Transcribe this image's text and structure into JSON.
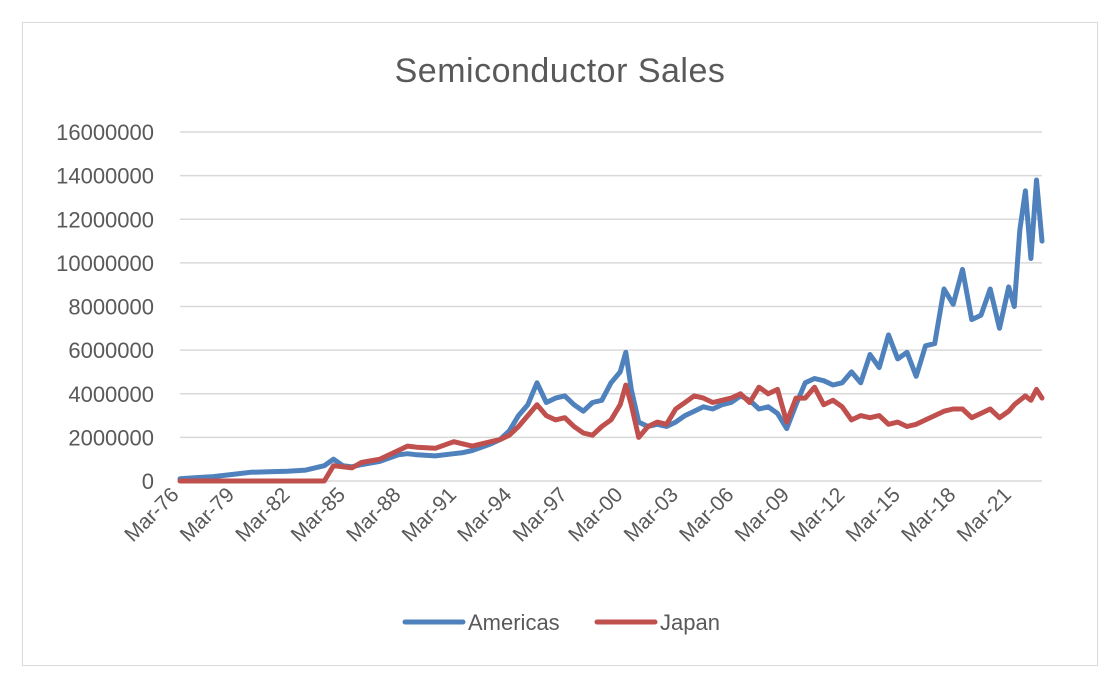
{
  "chart_data": {
    "type": "line",
    "title": "Semiconductor Sales",
    "xlabel": "",
    "ylabel": "",
    "ylim": [
      0,
      16000000
    ],
    "yticks": [
      "0",
      "2000000",
      "4000000",
      "6000000",
      "8000000",
      "10000000",
      "12000000",
      "14000000",
      "16000000"
    ],
    "xticks": [
      "Mar-76",
      "Mar-79",
      "Mar-82",
      "Mar-85",
      "Mar-88",
      "Mar-91",
      "Mar-94",
      "Mar-97",
      "Mar-00",
      "Mar-03",
      "Mar-06",
      "Mar-09",
      "Mar-12",
      "Mar-15",
      "Mar-18",
      "Mar-21"
    ],
    "grid": true,
    "legend_position": "bottom",
    "x": [
      1976.2,
      1977.0,
      1978.0,
      1979.0,
      1980.0,
      1981.0,
      1982.0,
      1983.0,
      1984.0,
      1984.5,
      1985.0,
      1985.5,
      1986.0,
      1987.0,
      1988.0,
      1988.5,
      1989.0,
      1990.0,
      1991.0,
      1991.5,
      1992.0,
      1993.0,
      1993.5,
      1994.0,
      1994.5,
      1995.0,
      1995.5,
      1996.0,
      1996.5,
      1997.0,
      1997.5,
      1998.0,
      1998.5,
      1999.0,
      1999.5,
      2000.0,
      2000.3,
      2000.6,
      2001.0,
      2001.5,
      2002.0,
      2002.5,
      2003.0,
      2003.5,
      2004.0,
      2004.5,
      2005.0,
      2005.5,
      2006.0,
      2006.5,
      2007.0,
      2007.5,
      2008.0,
      2008.5,
      2009.0,
      2009.5,
      2010.0,
      2010.5,
      2011.0,
      2011.5,
      2012.0,
      2012.5,
      2013.0,
      2013.5,
      2014.0,
      2014.5,
      2015.0,
      2015.5,
      2016.0,
      2016.5,
      2017.0,
      2017.5,
      2018.0,
      2018.5,
      2019.0,
      2019.5,
      2020.0,
      2020.5,
      2021.0,
      2021.3,
      2021.6,
      2021.9,
      2022.2,
      2022.5,
      2022.8
    ],
    "series": [
      {
        "name": "Americas",
        "color": "#4f81bd",
        "values": [
          100000,
          150000,
          200000,
          300000,
          400000,
          420000,
          450000,
          500000,
          700000,
          1000000,
          700000,
          650000,
          750000,
          900000,
          1200000,
          1250000,
          1200000,
          1150000,
          1250000,
          1300000,
          1400000,
          1700000,
          1900000,
          2300000,
          3000000,
          3500000,
          4500000,
          3600000,
          3800000,
          3900000,
          3500000,
          3200000,
          3600000,
          3700000,
          4500000,
          5000000,
          5900000,
          4200000,
          2700000,
          2500000,
          2600000,
          2500000,
          2700000,
          3000000,
          3200000,
          3400000,
          3300000,
          3500000,
          3600000,
          3900000,
          3700000,
          3300000,
          3400000,
          3100000,
          2400000,
          3500000,
          4500000,
          4700000,
          4600000,
          4400000,
          4500000,
          5000000,
          4500000,
          5800000,
          5200000,
          6700000,
          5600000,
          5900000,
          4800000,
          6200000,
          6300000,
          8800000,
          8100000,
          9700000,
          7400000,
          7600000,
          8800000,
          7000000,
          8900000,
          8000000,
          11500000,
          13300000,
          10200000,
          13800000,
          11000000
        ]
      },
      {
        "name": "Japan",
        "color": "#c0504d",
        "values": [
          0,
          0,
          0,
          0,
          0,
          0,
          0,
          0,
          0,
          700000,
          650000,
          600000,
          850000,
          1000000,
          1400000,
          1600000,
          1550000,
          1500000,
          1800000,
          1700000,
          1600000,
          1800000,
          1900000,
          2100000,
          2500000,
          3000000,
          3500000,
          3000000,
          2800000,
          2900000,
          2500000,
          2200000,
          2100000,
          2500000,
          2800000,
          3500000,
          4400000,
          3500000,
          2000000,
          2500000,
          2700000,
          2600000,
          3300000,
          3600000,
          3900000,
          3800000,
          3600000,
          3700000,
          3800000,
          4000000,
          3600000,
          4300000,
          4000000,
          4200000,
          2700000,
          3800000,
          3800000,
          4300000,
          3500000,
          3700000,
          3400000,
          2800000,
          3000000,
          2900000,
          3000000,
          2600000,
          2700000,
          2500000,
          2600000,
          2800000,
          3000000,
          3200000,
          3300000,
          3300000,
          2900000,
          3100000,
          3300000,
          2900000,
          3200000,
          3500000,
          3700000,
          3900000,
          3700000,
          4200000,
          3800000
        ]
      }
    ]
  }
}
